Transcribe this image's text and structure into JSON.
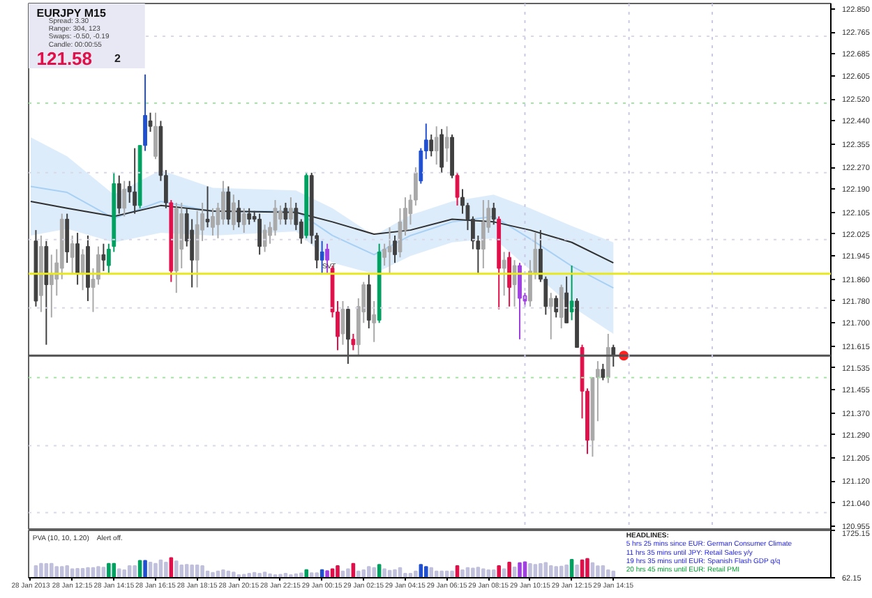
{
  "chart_data": [
    {
      "type": "candlestick",
      "title": "EURJPY  M15",
      "annotations": [
        "Spread: 3.30",
        "Range: 304, 123",
        "Swaps: -0.50, -0.19",
        "Candle: 00:00:55",
        "121.58",
        "2"
      ],
      "x": [
        "2013-01-28T10:30",
        "2013-01-28T10:45",
        "2013-01-28T11:00",
        "2013-01-28T11:15",
        "2013-01-28T11:30",
        "2013-01-28T11:45",
        "2013-01-28T12:00",
        "2013-01-28T12:15",
        "2013-01-28T12:30",
        "2013-01-28T12:45",
        "2013-01-28T13:00",
        "2013-01-28T13:15",
        "2013-01-28T13:30",
        "2013-01-28T13:45",
        "2013-01-28T14:00",
        "2013-01-28T14:15",
        "2013-01-28T14:30",
        "2013-01-28T14:45",
        "2013-01-28T15:00",
        "2013-01-28T15:15",
        "2013-01-28T15:30",
        "2013-01-28T15:45",
        "2013-01-28T16:00",
        "2013-01-28T16:15",
        "2013-01-28T16:30",
        "2013-01-28T16:45",
        "2013-01-28T17:00",
        "2013-01-28T17:15",
        "2013-01-28T17:30",
        "2013-01-28T17:45",
        "2013-01-28T18:00",
        "2013-01-28T18:15",
        "2013-01-28T18:30",
        "2013-01-28T18:45",
        "2013-01-28T19:00",
        "2013-01-28T19:15",
        "2013-01-28T19:30",
        "2013-01-28T19:45",
        "2013-01-28T20:00",
        "2013-01-28T20:15",
        "2013-01-28T20:30",
        "2013-01-28T20:45",
        "2013-01-28T21:00",
        "2013-01-28T21:15",
        "2013-01-28T21:30",
        "2013-01-28T21:45",
        "2013-01-28T22:00",
        "2013-01-28T22:15",
        "2013-01-28T22:30",
        "2013-01-28T22:45",
        "2013-01-28T23:00",
        "2013-01-28T23:15",
        "2013-01-28T23:30",
        "2013-01-28T23:45",
        "2013-01-29T00:00",
        "2013-01-29T00:15",
        "2013-01-29T00:30",
        "2013-01-29T00:45",
        "2013-01-29T01:00",
        "2013-01-29T01:15",
        "2013-01-29T01:30",
        "2013-01-29T01:45",
        "2013-01-29T02:00",
        "2013-01-29T02:15",
        "2013-01-29T02:30",
        "2013-01-29T02:45",
        "2013-01-29T03:00",
        "2013-01-29T03:15",
        "2013-01-29T03:30",
        "2013-01-29T03:45",
        "2013-01-29T04:00",
        "2013-01-29T04:15",
        "2013-01-29T04:30",
        "2013-01-29T04:45",
        "2013-01-29T05:00",
        "2013-01-29T05:15",
        "2013-01-29T05:30",
        "2013-01-29T05:45",
        "2013-01-29T06:00",
        "2013-01-29T06:15",
        "2013-01-29T06:30",
        "2013-01-29T06:45",
        "2013-01-29T07:00",
        "2013-01-29T07:15",
        "2013-01-29T07:30",
        "2013-01-29T07:45",
        "2013-01-29T08:00",
        "2013-01-29T08:15",
        "2013-01-29T08:30",
        "2013-01-29T08:45",
        "2013-01-29T09:00",
        "2013-01-29T09:15",
        "2013-01-29T09:30",
        "2013-01-29T09:45",
        "2013-01-29T10:00",
        "2013-01-29T10:15",
        "2013-01-29T10:30",
        "2013-01-29T10:45",
        "2013-01-29T11:00",
        "2013-01-29T11:15",
        "2013-01-29T11:30",
        "2013-01-29T11:45",
        "2013-01-29T12:00",
        "2013-01-29T12:15",
        "2013-01-29T12:30",
        "2013-01-29T12:45",
        "2013-01-29T13:00",
        "2013-01-29T13:15",
        "2013-01-29T13:30",
        "2013-01-29T13:45",
        "2013-01-29T14:00",
        "2013-01-29T14:15"
      ],
      "ohlc": [
        [
          122.0,
          122.04,
          121.76,
          121.78
        ],
        [
          121.8,
          122.02,
          121.74,
          121.98
        ],
        [
          121.98,
          122.0,
          121.62,
          121.84
        ],
        [
          121.84,
          121.95,
          121.72,
          121.88
        ],
        [
          121.86,
          121.97,
          121.8,
          121.92
        ],
        [
          121.9,
          122.1,
          121.86,
          122.08
        ],
        [
          122.08,
          122.1,
          121.92,
          121.96
        ],
        [
          121.94,
          122.02,
          121.88,
          121.99
        ],
        [
          121.99,
          122.03,
          121.84,
          121.88
        ],
        [
          121.88,
          121.97,
          121.82,
          121.95
        ],
        [
          121.98,
          122.02,
          121.78,
          121.83
        ],
        [
          121.83,
          121.9,
          121.74,
          121.86
        ],
        [
          121.86,
          121.98,
          121.84,
          121.95
        ],
        [
          121.95,
          121.99,
          121.89,
          121.93
        ],
        [
          121.91,
          121.99,
          121.88,
          121.97
        ],
        [
          121.98,
          122.25,
          121.96,
          122.21
        ],
        [
          122.21,
          122.24,
          122.1,
          122.12
        ],
        [
          122.12,
          122.22,
          122.09,
          122.19
        ],
        [
          122.2,
          122.22,
          122.14,
          122.18
        ],
        [
          122.18,
          122.34,
          122.1,
          122.13
        ],
        [
          122.13,
          122.35,
          122.12,
          122.35
        ],
        [
          122.35,
          122.61,
          122.33,
          122.46
        ],
        [
          122.44,
          122.47,
          122.4,
          122.42
        ],
        [
          122.31,
          122.47,
          122.3,
          122.42
        ],
        [
          122.42,
          122.44,
          122.22,
          122.24
        ],
        [
          122.24,
          122.26,
          122.12,
          122.14
        ],
        [
          122.14,
          122.15,
          121.85,
          121.89
        ],
        [
          121.89,
          122.14,
          121.81,
          122.12
        ],
        [
          121.97,
          122.14,
          121.9,
          122.1
        ],
        [
          122.1,
          122.12,
          121.98,
          122.0
        ],
        [
          122.04,
          122.08,
          121.83,
          121.93
        ],
        [
          121.93,
          122.11,
          121.83,
          122.06
        ],
        [
          122.04,
          122.14,
          122.0,
          122.1
        ],
        [
          122.08,
          122.2,
          122.05,
          122.07
        ],
        [
          122.05,
          122.12,
          122.02,
          122.09
        ],
        [
          122.06,
          122.14,
          122.01,
          122.12
        ],
        [
          122.08,
          122.22,
          122.06,
          122.18
        ],
        [
          122.18,
          122.2,
          122.06,
          122.08
        ],
        [
          122.06,
          122.17,
          122.04,
          122.14
        ],
        [
          122.12,
          122.15,
          122.05,
          122.07
        ],
        [
          122.06,
          122.12,
          122.03,
          122.1
        ],
        [
          122.1,
          122.12,
          122.06,
          122.08
        ],
        [
          122.09,
          122.11,
          122.07,
          122.08
        ],
        [
          122.08,
          122.1,
          121.95,
          121.98
        ],
        [
          121.98,
          122.06,
          121.96,
          122.04
        ],
        [
          122.02,
          122.07,
          121.99,
          122.05
        ],
        [
          122.04,
          122.15,
          122.02,
          122.12
        ],
        [
          122.08,
          122.13,
          122.06,
          122.11
        ],
        [
          122.12,
          122.14,
          122.06,
          122.08
        ],
        [
          122.08,
          122.16,
          122.06,
          122.12
        ],
        [
          122.12,
          122.14,
          122.04,
          122.06
        ],
        [
          122.07,
          122.08,
          121.99,
          122.01
        ],
        [
          122.02,
          122.25,
          122.01,
          122.24
        ],
        [
          122.24,
          122.25,
          121.99,
          122.02
        ],
        [
          122.02,
          122.03,
          121.9,
          121.93
        ],
        [
          121.96,
          122.0,
          121.88,
          121.93
        ],
        [
          121.93,
          121.99,
          121.88,
          121.97
        ],
        [
          121.9,
          121.91,
          121.72,
          121.74
        ],
        [
          121.74,
          121.78,
          121.6,
          121.65
        ],
        [
          121.66,
          121.78,
          121.62,
          121.75
        ],
        [
          121.75,
          121.76,
          121.55,
          121.64
        ],
        [
          121.64,
          121.66,
          121.6,
          121.62
        ],
        [
          121.62,
          121.79,
          121.58,
          121.76
        ],
        [
          121.74,
          121.85,
          121.7,
          121.84
        ],
        [
          121.84,
          121.88,
          121.68,
          121.71
        ],
        [
          121.7,
          121.78,
          121.63,
          121.73
        ],
        [
          121.71,
          121.99,
          121.7,
          121.96
        ],
        [
          121.94,
          121.99,
          121.91,
          121.97
        ],
        [
          121.96,
          122.05,
          121.88,
          121.98
        ],
        [
          122.0,
          122.02,
          121.92,
          121.95
        ],
        [
          121.96,
          122.12,
          121.94,
          122.07
        ],
        [
          122.04,
          122.16,
          122.02,
          122.12
        ],
        [
          122.1,
          122.17,
          122.06,
          122.15
        ],
        [
          122.15,
          122.27,
          122.13,
          122.25
        ],
        [
          122.22,
          122.34,
          122.21,
          122.33
        ],
        [
          122.33,
          122.43,
          122.3,
          122.37
        ],
        [
          122.37,
          122.39,
          122.31,
          122.33
        ],
        [
          122.33,
          122.42,
          122.28,
          122.38
        ],
        [
          122.39,
          122.41,
          122.25,
          122.27
        ],
        [
          122.34,
          122.42,
          122.29,
          122.38
        ],
        [
          122.38,
          122.39,
          122.23,
          122.24
        ],
        [
          122.24,
          122.25,
          122.13,
          122.16
        ],
        [
          122.16,
          122.19,
          122.1,
          122.13
        ],
        [
          122.13,
          122.14,
          122.04,
          122.08
        ],
        [
          122.08,
          122.09,
          121.97,
          122.0
        ],
        [
          122.0,
          122.02,
          121.88,
          121.97
        ],
        [
          121.97,
          122.15,
          121.9,
          122.07
        ],
        [
          122.05,
          122.15,
          122.03,
          122.12
        ],
        [
          122.12,
          122.14,
          122.06,
          122.08
        ],
        [
          122.08,
          122.09,
          121.75,
          121.9
        ],
        [
          121.9,
          121.96,
          121.8,
          121.93
        ],
        [
          121.94,
          121.96,
          121.76,
          121.83
        ],
        [
          121.84,
          121.93,
          121.76,
          121.91
        ],
        [
          121.91,
          121.92,
          121.64,
          121.79
        ],
        [
          121.8,
          121.81,
          121.76,
          121.78
        ],
        [
          121.78,
          121.93,
          121.76,
          121.89
        ],
        [
          121.88,
          122.03,
          121.86,
          121.97
        ],
        [
          121.97,
          122.04,
          121.85,
          121.86
        ],
        [
          121.86,
          121.87,
          121.73,
          121.76
        ],
        [
          121.76,
          121.81,
          121.64,
          121.79
        ],
        [
          121.79,
          121.8,
          121.72,
          121.74
        ],
        [
          121.72,
          121.84,
          121.68,
          121.83
        ],
        [
          121.81,
          121.87,
          121.7,
          121.7
        ],
        [
          121.74,
          121.91,
          121.71,
          121.78
        ],
        [
          121.78,
          121.79,
          121.61,
          121.61
        ],
        [
          121.61,
          121.62,
          121.35,
          121.45
        ],
        [
          121.45,
          121.46,
          121.22,
          121.27
        ],
        [
          121.27,
          121.5,
          121.21,
          121.5
        ],
        [
          121.5,
          121.56,
          121.34,
          121.53
        ],
        [
          121.53,
          121.55,
          121.49,
          121.5
        ],
        [
          121.5,
          121.66,
          121.48,
          121.61
        ],
        [
          121.61,
          121.62,
          121.54,
          121.58
        ]
      ],
      "colors": [
        "#404040",
        "#a9a9a9",
        "#404040",
        "#a9a9a9",
        "#a9a9a9",
        "#a9a9a9",
        "#404040",
        "#a9a9a9",
        "#404040",
        "#a9a9a9",
        "#404040",
        "#a9a9a9",
        "#a9a9a9",
        "#404040",
        "#00a060",
        "#00a060",
        "#404040",
        "#a9a9a9",
        "#404040",
        "#404040",
        "#00a060",
        "#2050d0",
        "#404040",
        "#a9a9a9",
        "#404040",
        "#404040",
        "#e0104a",
        "#a9a9a9",
        "#a9a9a9",
        "#404040",
        "#404040",
        "#a9a9a9",
        "#a9a9a9",
        "#404040",
        "#a9a9a9",
        "#a9a9a9",
        "#a9a9a9",
        "#404040",
        "#a9a9a9",
        "#404040",
        "#a9a9a9",
        "#404040",
        "#404040",
        "#404040",
        "#a9a9a9",
        "#a9a9a9",
        "#a9a9a9",
        "#a9a9a9",
        "#404040",
        "#a9a9a9",
        "#404040",
        "#404040",
        "#00a060",
        "#404040",
        "#404040",
        "#2050d0",
        "#a040e0",
        "#e0104a",
        "#e0104a",
        "#a9a9a9",
        "#404040",
        "#e0104a",
        "#a9a9a9",
        "#a9a9a9",
        "#404040",
        "#a9a9a9",
        "#00a060",
        "#a9a9a9",
        "#a9a9a9",
        "#404040",
        "#a9a9a9",
        "#a9a9a9",
        "#a9a9a9",
        "#a9a9a9",
        "#2050d0",
        "#2050d0",
        "#404040",
        "#a9a9a9",
        "#404040",
        "#a9a9a9",
        "#404040",
        "#e0104a",
        "#404040",
        "#404040",
        "#404040",
        "#404040",
        "#a9a9a9",
        "#a9a9a9",
        "#404040",
        "#e0104a",
        "#a9a9a9",
        "#e0104a",
        "#a9a9a9",
        "#a040e0",
        "#a040e0",
        "#a9a9a9",
        "#a9a9a9",
        "#404040",
        "#404040",
        "#a9a9a9",
        "#404040",
        "#a9a9a9",
        "#404040",
        "#00a060",
        "#404040",
        "#e0104a",
        "#e0104a",
        "#a9a9a9",
        "#a9a9a9",
        "#404040",
        "#a9a9a9",
        "#404040"
      ],
      "series": [
        {
          "type": "line",
          "color": "#a8d0f5",
          "x": [
            "2013-01-28T10:15",
            "2013-01-28T12:00",
            "2013-01-28T14:15",
            "2013-01-28T16:30",
            "2013-01-28T19:00",
            "2013-01-28T23:00",
            "2013-01-29T00:45",
            "2013-01-29T02:45",
            "2013-01-29T04:30",
            "2013-01-29T06:30",
            "2013-01-29T08:30",
            "2013-01-29T10:15",
            "2013-01-29T12:15",
            "2013-01-29T14:15"
          ],
          "values": [
            122.2,
            122.178,
            122.083,
            122.145,
            122.108,
            122.11,
            122.02,
            121.95,
            122.02,
            122.07,
            122.09,
            122.008,
            121.908,
            121.828
          ],
          "lower": [
            122.02,
            122.045,
            121.995,
            122.03,
            122.02,
            122.035,
            121.92,
            121.88,
            121.945,
            121.995,
            122.01,
            121.895,
            121.76,
            121.66
          ],
          "upper": [
            122.38,
            122.31,
            122.17,
            122.26,
            122.195,
            122.185,
            122.12,
            122.02,
            122.095,
            122.145,
            122.17,
            122.12,
            122.055,
            121.995
          ]
        },
        {
          "type": "line",
          "color": "#303030",
          "x": [
            "2013-01-28T10:15",
            "2013-01-28T12:00",
            "2013-01-28T14:15",
            "2013-01-28T16:30",
            "2013-01-28T19:00",
            "2013-01-28T23:00",
            "2013-01-29T00:45",
            "2013-01-29T02:45",
            "2013-01-29T04:30",
            "2013-01-29T06:30",
            "2013-01-29T08:30",
            "2013-01-29T10:15",
            "2013-01-29T12:15",
            "2013-01-29T14:15"
          ],
          "values": [
            122.145,
            122.12,
            122.09,
            122.13,
            122.11,
            122.105,
            122.07,
            122.025,
            122.04,
            122.08,
            122.07,
            122.04,
            121.995,
            121.92
          ]
        },
        {
          "type": "scatter",
          "color": "#ff2020",
          "marker": "circle",
          "x": [
            "2013-01-29T14:45"
          ],
          "values": [
            121.58
          ]
        }
      ],
      "ref_lines": [
        {
          "axis": "y",
          "value": 121.88,
          "label": "SVT",
          "color": "#e8e820",
          "line_style": "solid"
        },
        {
          "axis": "y",
          "value": 121.58,
          "color": "#505050",
          "line_style": "solid"
        },
        {
          "axis": "y",
          "value": 122.505,
          "color": "#a0e8a0",
          "line_style": "dotted"
        },
        {
          "axis": "y",
          "value": 121.5,
          "color": "#a0e8a0",
          "line_style": "dotted"
        },
        {
          "axis": "y",
          "value": 122.75,
          "color": "#d8d8e8",
          "line_style": "dotted"
        },
        {
          "axis": "y",
          "value": 122.25,
          "color": "#d8d8e8",
          "line_style": "dotted"
        },
        {
          "axis": "y",
          "value": 122.005,
          "color": "#d8d8e8",
          "line_style": "dotted"
        },
        {
          "axis": "y",
          "value": 121.755,
          "color": "#d8d8e8",
          "line_style": "dotted"
        },
        {
          "axis": "y",
          "value": 121.25,
          "color": "#d8d8e8",
          "line_style": "dotted"
        },
        {
          "axis": "y",
          "value": 121.005,
          "color": "#d8d8e8",
          "line_style": "dotted"
        },
        {
          "axis": "x",
          "value": "2013-01-29T10:00",
          "color": "#c8c8e8",
          "line_style": "dotted"
        },
        {
          "axis": "x",
          "value": "2013-01-29T15:00",
          "color": "#c8c8e8",
          "line_style": "dotted"
        },
        {
          "axis": "x",
          "value": "2013-01-29T19:00",
          "color": "#c8c8e8",
          "line_style": "dotted"
        }
      ],
      "xlim": [
        "2013-01-28T10:09",
        "2013-01-30T00:42"
      ],
      "ylim": [
        120.94,
        122.87
      ],
      "yticks": [
        {
          "value": 122.85,
          "label": "122.850"
        },
        {
          "value": 122.765,
          "label": "122.765"
        },
        {
          "value": 122.685,
          "label": "122.685"
        },
        {
          "value": 122.605,
          "label": "122.605"
        },
        {
          "value": 122.52,
          "label": "122.520"
        },
        {
          "value": 122.44,
          "label": "122.440"
        },
        {
          "value": 122.355,
          "label": "122.355"
        },
        {
          "value": 122.27,
          "label": "122.270"
        },
        {
          "value": 122.19,
          "label": "122.190"
        },
        {
          "value": 122.105,
          "label": "122.105"
        },
        {
          "value": 122.025,
          "label": "122.025"
        },
        {
          "value": 121.945,
          "label": "121.945"
        },
        {
          "value": 121.86,
          "label": "121.860"
        },
        {
          "value": 121.78,
          "label": "121.780"
        },
        {
          "value": 121.7,
          "label": "121.700"
        },
        {
          "value": 121.615,
          "label": "121.615"
        },
        {
          "value": 121.535,
          "label": "121.535"
        },
        {
          "value": 121.455,
          "label": "121.455"
        },
        {
          "value": 121.37,
          "label": "121.370"
        },
        {
          "value": 121.29,
          "label": "121.290"
        },
        {
          "value": 121.205,
          "label": "121.205"
        },
        {
          "value": 121.12,
          "label": "121.120"
        },
        {
          "value": 121.04,
          "label": "121.040"
        },
        {
          "value": 120.955,
          "label": "120.955"
        }
      ],
      "tick_labels": "y"
    },
    {
      "type": "bar",
      "title": "PVA (10, 10, 1.20)",
      "annotations": [
        "Alert off.",
        "HEADLINES:",
        "5 hrs 25 mins since EUR: German Consumer Climate",
        "11 hrs 35 mins until JPY: Retail Sales y/y",
        "19 hrs 35 mins until EUR: Spanish Flash GDP q/q",
        "20 hrs 45 mins until EUR: Retail PMI"
      ],
      "x": [
        "2013-01-28T10:30",
        "2013-01-28T10:45",
        "2013-01-28T11:00",
        "2013-01-28T11:15",
        "2013-01-28T11:30",
        "2013-01-28T11:45",
        "2013-01-28T12:00",
        "2013-01-28T12:15",
        "2013-01-28T12:30",
        "2013-01-28T12:45",
        "2013-01-28T13:00",
        "2013-01-28T13:15",
        "2013-01-28T13:30",
        "2013-01-28T13:45",
        "2013-01-28T14:00",
        "2013-01-28T14:15",
        "2013-01-28T14:30",
        "2013-01-28T14:45",
        "2013-01-28T15:00",
        "2013-01-28T15:15",
        "2013-01-28T15:30",
        "2013-01-28T15:45",
        "2013-01-28T16:00",
        "2013-01-28T16:15",
        "2013-01-28T16:30",
        "2013-01-28T16:45",
        "2013-01-28T17:00",
        "2013-01-28T17:15",
        "2013-01-28T17:30",
        "2013-01-28T17:45",
        "2013-01-28T18:00",
        "2013-01-28T18:15",
        "2013-01-28T18:30",
        "2013-01-28T18:45",
        "2013-01-28T19:00",
        "2013-01-28T19:15",
        "2013-01-28T19:30",
        "2013-01-28T19:45",
        "2013-01-28T20:00",
        "2013-01-28T20:15",
        "2013-01-28T20:30",
        "2013-01-28T20:45",
        "2013-01-28T21:00",
        "2013-01-28T21:15",
        "2013-01-28T21:30",
        "2013-01-28T21:45",
        "2013-01-28T22:00",
        "2013-01-28T22:15",
        "2013-01-28T22:30",
        "2013-01-28T22:45",
        "2013-01-28T23:00",
        "2013-01-28T23:15",
        "2013-01-28T23:30",
        "2013-01-28T23:45",
        "2013-01-29T00:00",
        "2013-01-29T00:15",
        "2013-01-29T00:30",
        "2013-01-29T00:45",
        "2013-01-29T01:00",
        "2013-01-29T01:15",
        "2013-01-29T01:30",
        "2013-01-29T01:45",
        "2013-01-29T02:00",
        "2013-01-29T02:15",
        "2013-01-29T02:30",
        "2013-01-29T02:45",
        "2013-01-29T03:00",
        "2013-01-29T03:15",
        "2013-01-29T03:30",
        "2013-01-29T03:45",
        "2013-01-29T04:00",
        "2013-01-29T04:15",
        "2013-01-29T04:30",
        "2013-01-29T04:45",
        "2013-01-29T05:00",
        "2013-01-29T05:15",
        "2013-01-29T05:30",
        "2013-01-29T05:45",
        "2013-01-29T06:00",
        "2013-01-29T06:15",
        "2013-01-29T06:30",
        "2013-01-29T06:45",
        "2013-01-29T07:00",
        "2013-01-29T07:15",
        "2013-01-29T07:30",
        "2013-01-29T07:45",
        "2013-01-29T08:00",
        "2013-01-29T08:15",
        "2013-01-29T08:30",
        "2013-01-29T08:45",
        "2013-01-29T09:00",
        "2013-01-29T09:15",
        "2013-01-29T09:30",
        "2013-01-29T09:45",
        "2013-01-29T10:00",
        "2013-01-29T10:15",
        "2013-01-29T10:30",
        "2013-01-29T10:45",
        "2013-01-29T11:00",
        "2013-01-29T11:15",
        "2013-01-29T11:30",
        "2013-01-29T11:45",
        "2013-01-29T12:00",
        "2013-01-29T12:15",
        "2013-01-29T12:30",
        "2013-01-29T12:45",
        "2013-01-29T13:00",
        "2013-01-29T13:15",
        "2013-01-29T13:30",
        "2013-01-29T13:45",
        "2013-01-29T14:00",
        "2013-01-29T14:15"
      ],
      "values": [
        480,
        560,
        550,
        560,
        450,
        450,
        480,
        370,
        380,
        380,
        410,
        410,
        450,
        420,
        560,
        560,
        370,
        330,
        480,
        480,
        660,
        660,
        600,
        560,
        680,
        600,
        760,
        640,
        500,
        520,
        500,
        500,
        480,
        290,
        240,
        290,
        330,
        290,
        250,
        160,
        170,
        210,
        240,
        210,
        250,
        190,
        160,
        170,
        210,
        160,
        190,
        220,
        340,
        230,
        230,
        340,
        300,
        370,
        480,
        290,
        370,
        560,
        290,
        330,
        450,
        410,
        520,
        370,
        310,
        340,
        410,
        210,
        210,
        290,
        520,
        450,
        410,
        290,
        290,
        290,
        290,
        480,
        330,
        410,
        390,
        420,
        370,
        330,
        330,
        480,
        370,
        600,
        430,
        580,
        610,
        550,
        520,
        550,
        590,
        480,
        450,
        460,
        500,
        700,
        500,
        680,
        730,
        580,
        470,
        480,
        330,
        290
      ],
      "colors": [
        "#c0c0dc",
        "#c0c0dc",
        "#c0c0dc",
        "#c0c0dc",
        "#c0c0dc",
        "#c0c0dc",
        "#c0c0dc",
        "#c0c0dc",
        "#c0c0dc",
        "#c0c0dc",
        "#c0c0dc",
        "#c0c0dc",
        "#c0c0dc",
        "#c0c0dc",
        "#00a060",
        "#00a060",
        "#c0c0dc",
        "#c0c0dc",
        "#c0c0dc",
        "#c0c0dc",
        "#00a060",
        "#2050d0",
        "#c0c0dc",
        "#c0c0dc",
        "#c0c0dc",
        "#c0c0dc",
        "#e0104a",
        "#c0c0dc",
        "#c0c0dc",
        "#c0c0dc",
        "#c0c0dc",
        "#c0c0dc",
        "#c0c0dc",
        "#c0c0dc",
        "#c0c0dc",
        "#c0c0dc",
        "#c0c0dc",
        "#c0c0dc",
        "#c0c0dc",
        "#c0c0dc",
        "#c0c0dc",
        "#c0c0dc",
        "#c0c0dc",
        "#c0c0dc",
        "#c0c0dc",
        "#c0c0dc",
        "#c0c0dc",
        "#c0c0dc",
        "#c0c0dc",
        "#c0c0dc",
        "#c0c0dc",
        "#c0c0dc",
        "#00a060",
        "#c0c0dc",
        "#c0c0dc",
        "#2050d0",
        "#a040e0",
        "#e0104a",
        "#e0104a",
        "#c0c0dc",
        "#c0c0dc",
        "#e0104a",
        "#c0c0dc",
        "#c0c0dc",
        "#c0c0dc",
        "#c0c0dc",
        "#00a060",
        "#c0c0dc",
        "#c0c0dc",
        "#c0c0dc",
        "#c0c0dc",
        "#c0c0dc",
        "#c0c0dc",
        "#c0c0dc",
        "#2050d0",
        "#2050d0",
        "#c0c0dc",
        "#c0c0dc",
        "#c0c0dc",
        "#c0c0dc",
        "#c0c0dc",
        "#e0104a",
        "#c0c0dc",
        "#c0c0dc",
        "#c0c0dc",
        "#c0c0dc",
        "#c0c0dc",
        "#c0c0dc",
        "#c0c0dc",
        "#e0104a",
        "#c0c0dc",
        "#e0104a",
        "#c0c0dc",
        "#a040e0",
        "#a040e0",
        "#c0c0dc",
        "#c0c0dc",
        "#c0c0dc",
        "#c0c0dc",
        "#c0c0dc",
        "#c0c0dc",
        "#c0c0dc",
        "#c0c0dc",
        "#00a060",
        "#c0c0dc",
        "#e0104a",
        "#e0104a",
        "#c0c0dc",
        "#c0c0dc",
        "#c0c0dc",
        "#c0c0dc",
        "#c0c0dc"
      ],
      "xlim": [
        "2013-01-28T10:09",
        "2013-01-30T00:42"
      ],
      "ylim": [
        62.15,
        1725.15
      ],
      "yticks": [
        62.15,
        1725.15
      ],
      "xticks": [
        {
          "value": "2013-01-28T10:15",
          "label": "28 Jan 2013"
        },
        {
          "value": "2013-01-28T12:15",
          "label": "28 Jan 12:15"
        },
        {
          "value": "2013-01-28T14:15",
          "label": "28 Jan 14:15"
        },
        {
          "value": "2013-01-28T16:15",
          "label": "28 Jan 16:15"
        },
        {
          "value": "2013-01-28T18:15",
          "label": "28 Jan 18:15"
        },
        {
          "value": "2013-01-28T20:15",
          "label": "28 Jan 20:15"
        },
        {
          "value": "2013-01-28T22:15",
          "label": "28 Jan 22:15"
        },
        {
          "value": "2013-01-29T00:15",
          "label": "29 Jan 00:15"
        },
        {
          "value": "2013-01-29T02:15",
          "label": "29 Jan 02:15"
        },
        {
          "value": "2013-01-29T04:15",
          "label": "29 Jan 04:15"
        },
        {
          "value": "2013-01-29T06:15",
          "label": "29 Jan 06:15"
        },
        {
          "value": "2013-01-29T08:15",
          "label": "29 Jan 08:15"
        },
        {
          "value": "2013-01-29T10:15",
          "label": "29 Jan 10:15"
        },
        {
          "value": "2013-01-29T12:15",
          "label": "29 Jan 12:15"
        },
        {
          "value": "2013-01-29T14:15",
          "label": "29 Jan 14:15"
        }
      ]
    }
  ]
}
